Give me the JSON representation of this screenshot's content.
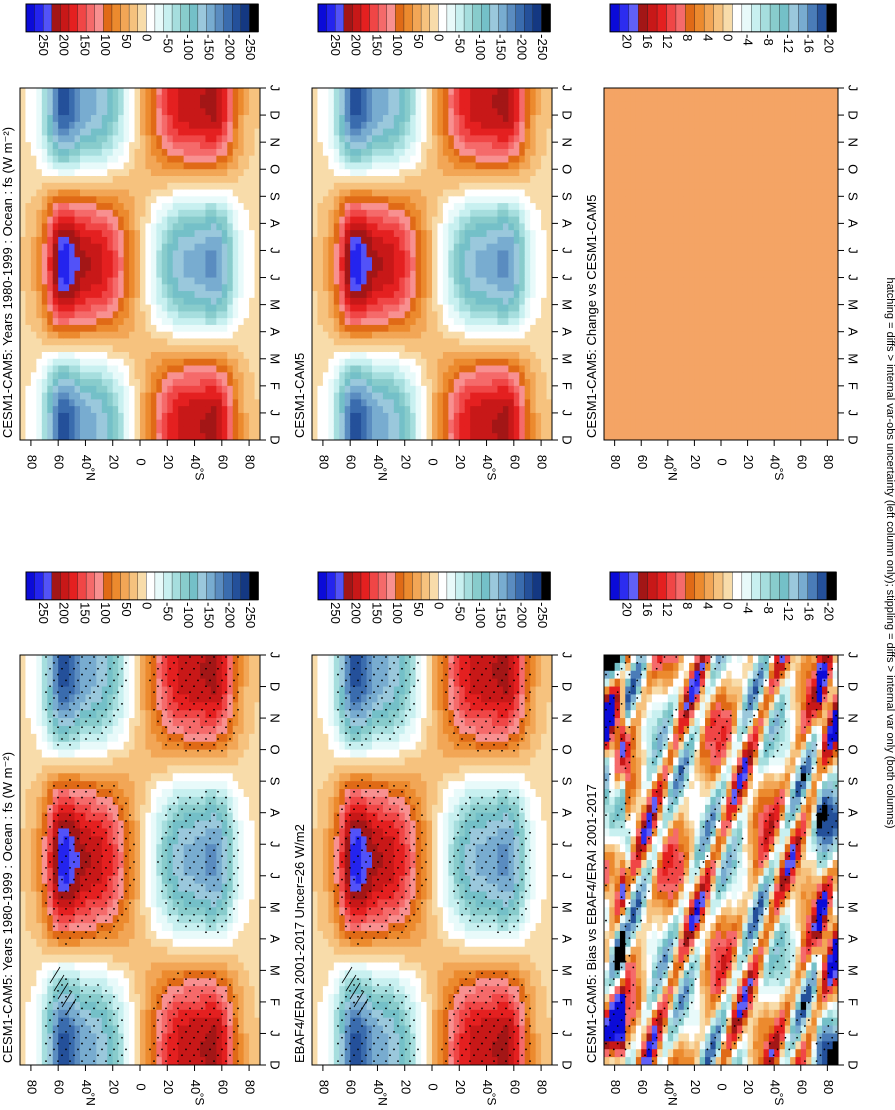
{
  "figure": {
    "footnote": "hatching = diffs > internal var-obs uncertainty (left column only); stippling = diffs > internal var only (both columns)"
  },
  "chart_data": [
    {
      "type": "heatmap",
      "title": "CESM1-CAM5: Years 1980-1999 : Ocean : fs (W m⁻²)",
      "x_label": "",
      "y_label": "",
      "months": [
        "D",
        "J",
        "F",
        "M",
        "A",
        "M",
        "J",
        "J",
        "A",
        "S",
        "O",
        "N",
        "D",
        "J"
      ],
      "lat_ticks": [
        "80",
        "60",
        "40",
        "20",
        "0",
        "20",
        "40",
        "60",
        "80"
      ],
      "lat_hemisphere_labels": [
        "°N",
        "°S"
      ],
      "colorbar_labels": [
        "250",
        "200",
        "150",
        "100",
        "50",
        "0",
        "-50",
        "-100",
        "-150",
        "-200",
        "-250"
      ],
      "field": "seasonal_net_surface_flux",
      "stippling": true,
      "hatching": true
    },
    {
      "type": "heatmap",
      "title": "EBAF4/ERAI 2001-2017 Uncer=26 W/m2",
      "months": [
        "D",
        "J",
        "F",
        "M",
        "A",
        "M",
        "J",
        "J",
        "A",
        "S",
        "O",
        "N",
        "D",
        "J"
      ],
      "lat_ticks": [
        "80",
        "60",
        "40",
        "20",
        "0",
        "20",
        "40",
        "60",
        "80"
      ],
      "lat_hemisphere_labels": [
        "°N",
        "°S"
      ],
      "colorbar_labels": [
        "250",
        "200",
        "150",
        "100",
        "50",
        "0",
        "-50",
        "-100",
        "-150",
        "-200",
        "-250"
      ],
      "field": "seasonal_net_surface_flux",
      "stippling": true,
      "hatching": true
    },
    {
      "type": "heatmap",
      "title": "CESM1-CAM5: Bias vs EBAF4/ERAI 2001-2017",
      "months": [
        "D",
        "J",
        "F",
        "M",
        "A",
        "M",
        "J",
        "J",
        "A",
        "S",
        "O",
        "N",
        "D",
        "J"
      ],
      "lat_ticks": [
        "80",
        "60",
        "40",
        "20",
        "0",
        "20",
        "40",
        "60",
        "80"
      ],
      "lat_hemisphere_labels": [
        "°N",
        "°S"
      ],
      "colorbar_labels": [
        "20",
        "16",
        "12",
        "8",
        "4",
        "0",
        "-4",
        "-8",
        "-12",
        "-16",
        "-20"
      ],
      "field": "bias",
      "stippling": true,
      "hatching": false
    },
    {
      "type": "heatmap",
      "title": "CESM1-CAM5: Years 1980-1999 : Ocean : fs (W m⁻²)",
      "months": [
        "D",
        "J",
        "F",
        "M",
        "A",
        "M",
        "J",
        "J",
        "A",
        "S",
        "O",
        "N",
        "D",
        "J"
      ],
      "lat_ticks": [
        "80",
        "60",
        "40",
        "20",
        "0",
        "20",
        "40",
        "60",
        "80"
      ],
      "lat_hemisphere_labels": [
        "°N",
        "°S"
      ],
      "colorbar_labels": [
        "250",
        "200",
        "150",
        "100",
        "50",
        "0",
        "-50",
        "-100",
        "-150",
        "-200",
        "-250"
      ],
      "field": "seasonal_net_surface_flux",
      "stippling": false,
      "hatching": false
    },
    {
      "type": "heatmap",
      "title": "CESM1-CAM5",
      "months": [
        "D",
        "J",
        "F",
        "M",
        "A",
        "M",
        "J",
        "J",
        "A",
        "S",
        "O",
        "N",
        "D",
        "J"
      ],
      "lat_ticks": [
        "80",
        "60",
        "40",
        "20",
        "0",
        "20",
        "40",
        "60",
        "80"
      ],
      "lat_hemisphere_labels": [
        "°N",
        "°S"
      ],
      "colorbar_labels": [
        "250",
        "200",
        "150",
        "100",
        "50",
        "0",
        "-50",
        "-100",
        "-150",
        "-200",
        "-250"
      ],
      "field": "seasonal_net_surface_flux",
      "stippling": false,
      "hatching": false
    },
    {
      "type": "heatmap",
      "title": "CESM1-CAM5: Change vs CESM1-CAM5",
      "months": [
        "D",
        "J",
        "F",
        "M",
        "A",
        "M",
        "J",
        "J",
        "A",
        "S",
        "O",
        "N",
        "D",
        "J"
      ],
      "lat_ticks": [
        "80",
        "60",
        "40",
        "20",
        "0",
        "20",
        "40",
        "60",
        "80"
      ],
      "lat_hemisphere_labels": [
        "°N",
        "°S"
      ],
      "colorbar_labels": [
        "20",
        "16",
        "12",
        "8",
        "4",
        "0",
        "-4",
        "-8",
        "-12",
        "-16",
        "-20"
      ],
      "field": "uniform",
      "uniform_value": 0,
      "stippling": false,
      "hatching": false
    }
  ],
  "palette": {
    "flux_colors": [
      "#0b0bd8",
      "#2424ee",
      "#5252f8",
      "#a31616",
      "#c81818",
      "#e42020",
      "#f04646",
      "#f56a6a",
      "#f89090",
      "#e06a16",
      "#ec8a2e",
      "#f2a656",
      "#f6c27e",
      "#f8dcaa",
      "#ffffff",
      "#e8fafa",
      "#c8f0f0",
      "#a6dede",
      "#88cccc",
      "#74c0c8",
      "#9ac8dc",
      "#78acd0",
      "#5a8cc0",
      "#3a6cae",
      "#24509a",
      "#143882",
      "#000000"
    ],
    "uniform_fill": "#f4a465"
  }
}
